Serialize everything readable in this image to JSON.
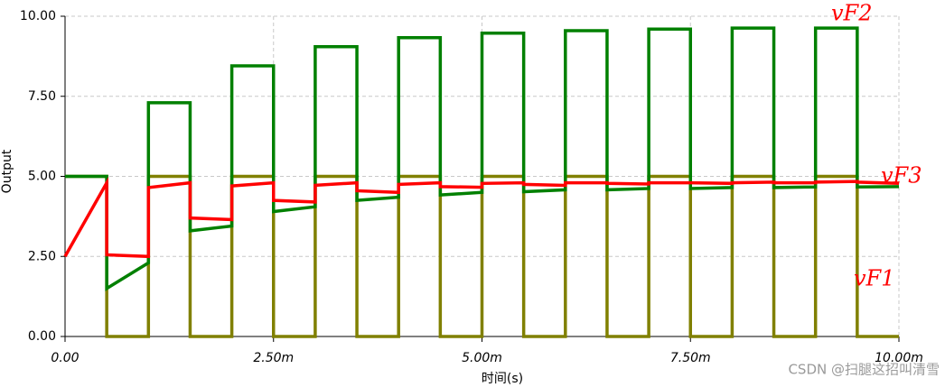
{
  "chart_data": {
    "type": "line",
    "x_label": "时间(s)",
    "y_label": "Output",
    "watermark": "CSDN @扫腿这招叫清雪",
    "xlim": [
      0,
      0.01
    ],
    "ylim": [
      0,
      10
    ],
    "xticks": [
      {
        "value": 0,
        "label": "0.00"
      },
      {
        "value": 0.0025,
        "label": "2.50m"
      },
      {
        "value": 0.005,
        "label": "5.00m"
      },
      {
        "value": 0.0075,
        "label": "7.50m"
      },
      {
        "value": 0.01,
        "label": "10.00m"
      }
    ],
    "yticks": [
      {
        "value": 0,
        "label": "0.00"
      },
      {
        "value": 2.5,
        "label": "2.50"
      },
      {
        "value": 5,
        "label": "5.00"
      },
      {
        "value": 7.5,
        "label": "7.50"
      },
      {
        "value": 10,
        "label": "10.00"
      }
    ],
    "grid": true,
    "x": [
      0,
      0.0005,
      0.0005,
      0.001,
      0.001,
      0.0015,
      0.0015,
      0.002,
      0.002,
      0.0025,
      0.0025,
      0.003,
      0.003,
      0.0035,
      0.0035,
      0.004,
      0.004,
      0.0045,
      0.0045,
      0.005,
      0.005,
      0.0055,
      0.0055,
      0.006,
      0.006,
      0.0065,
      0.0065,
      0.007,
      0.007,
      0.0075,
      0.0075,
      0.008,
      0.008,
      0.0085,
      0.0085,
      0.009,
      0.009,
      0.0095,
      0.0095,
      0.01
    ],
    "series": [
      {
        "name": "vF1",
        "color": "#808000",
        "values": [
          5,
          5,
          0,
          0,
          5,
          5,
          0,
          0,
          5,
          5,
          0,
          0,
          5,
          5,
          0,
          0,
          5,
          5,
          0,
          0,
          5,
          5,
          0,
          0,
          5,
          5,
          0,
          0,
          5,
          5,
          0,
          0,
          5,
          5,
          0,
          0,
          5,
          5,
          0,
          0
        ]
      },
      {
        "name": "vF2",
        "color": "#008000",
        "values": [
          5,
          5,
          1.5,
          2.3,
          7.3,
          7.3,
          3.3,
          3.45,
          8.45,
          8.45,
          3.9,
          4.05,
          9.05,
          9.05,
          4.25,
          4.35,
          9.33,
          9.33,
          4.42,
          4.5,
          9.47,
          9.47,
          4.52,
          4.58,
          9.55,
          9.55,
          4.58,
          4.62,
          9.6,
          9.6,
          4.62,
          4.65,
          9.63,
          9.63,
          4.65,
          4.67,
          9.63,
          9.63,
          4.67,
          4.68
        ]
      },
      {
        "name": "vF3",
        "color": "#ff0000",
        "values": [
          2.5,
          4.8,
          2.55,
          2.5,
          4.65,
          4.8,
          3.7,
          3.65,
          4.7,
          4.8,
          4.25,
          4.2,
          4.72,
          4.8,
          4.55,
          4.5,
          4.75,
          4.8,
          4.68,
          4.66,
          4.78,
          4.8,
          4.75,
          4.72,
          4.8,
          4.8,
          4.78,
          4.76,
          4.8,
          4.8,
          4.8,
          4.78,
          4.8,
          4.82,
          4.8,
          4.8,
          4.82,
          4.84,
          4.82,
          4.78
        ]
      }
    ]
  }
}
